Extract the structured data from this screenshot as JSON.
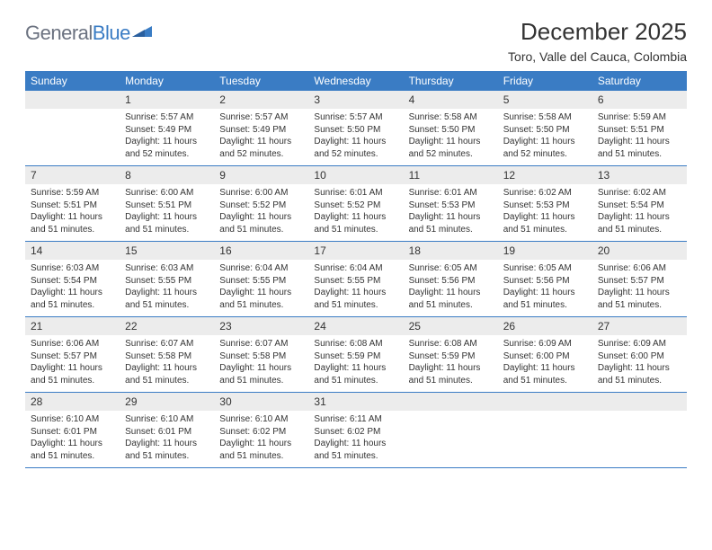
{
  "logo": {
    "text1": "General",
    "text2": "Blue"
  },
  "title": "December 2025",
  "location": "Toro, Valle del Cauca, Colombia",
  "colors": {
    "header_bg": "#3a7cc4",
    "daynum_bg": "#ececec",
    "row_border": "#3a7cc4",
    "text": "#333333",
    "logo_gray": "#6b7280"
  },
  "day_headers": [
    "Sunday",
    "Monday",
    "Tuesday",
    "Wednesday",
    "Thursday",
    "Friday",
    "Saturday"
  ],
  "weeks": [
    [
      {
        "n": "",
        "sr": "",
        "ss": "",
        "dl": ""
      },
      {
        "n": "1",
        "sr": "Sunrise: 5:57 AM",
        "ss": "Sunset: 5:49 PM",
        "dl": "Daylight: 11 hours and 52 minutes."
      },
      {
        "n": "2",
        "sr": "Sunrise: 5:57 AM",
        "ss": "Sunset: 5:49 PM",
        "dl": "Daylight: 11 hours and 52 minutes."
      },
      {
        "n": "3",
        "sr": "Sunrise: 5:57 AM",
        "ss": "Sunset: 5:50 PM",
        "dl": "Daylight: 11 hours and 52 minutes."
      },
      {
        "n": "4",
        "sr": "Sunrise: 5:58 AM",
        "ss": "Sunset: 5:50 PM",
        "dl": "Daylight: 11 hours and 52 minutes."
      },
      {
        "n": "5",
        "sr": "Sunrise: 5:58 AM",
        "ss": "Sunset: 5:50 PM",
        "dl": "Daylight: 11 hours and 52 minutes."
      },
      {
        "n": "6",
        "sr": "Sunrise: 5:59 AM",
        "ss": "Sunset: 5:51 PM",
        "dl": "Daylight: 11 hours and 51 minutes."
      }
    ],
    [
      {
        "n": "7",
        "sr": "Sunrise: 5:59 AM",
        "ss": "Sunset: 5:51 PM",
        "dl": "Daylight: 11 hours and 51 minutes."
      },
      {
        "n": "8",
        "sr": "Sunrise: 6:00 AM",
        "ss": "Sunset: 5:51 PM",
        "dl": "Daylight: 11 hours and 51 minutes."
      },
      {
        "n": "9",
        "sr": "Sunrise: 6:00 AM",
        "ss": "Sunset: 5:52 PM",
        "dl": "Daylight: 11 hours and 51 minutes."
      },
      {
        "n": "10",
        "sr": "Sunrise: 6:01 AM",
        "ss": "Sunset: 5:52 PM",
        "dl": "Daylight: 11 hours and 51 minutes."
      },
      {
        "n": "11",
        "sr": "Sunrise: 6:01 AM",
        "ss": "Sunset: 5:53 PM",
        "dl": "Daylight: 11 hours and 51 minutes."
      },
      {
        "n": "12",
        "sr": "Sunrise: 6:02 AM",
        "ss": "Sunset: 5:53 PM",
        "dl": "Daylight: 11 hours and 51 minutes."
      },
      {
        "n": "13",
        "sr": "Sunrise: 6:02 AM",
        "ss": "Sunset: 5:54 PM",
        "dl": "Daylight: 11 hours and 51 minutes."
      }
    ],
    [
      {
        "n": "14",
        "sr": "Sunrise: 6:03 AM",
        "ss": "Sunset: 5:54 PM",
        "dl": "Daylight: 11 hours and 51 minutes."
      },
      {
        "n": "15",
        "sr": "Sunrise: 6:03 AM",
        "ss": "Sunset: 5:55 PM",
        "dl": "Daylight: 11 hours and 51 minutes."
      },
      {
        "n": "16",
        "sr": "Sunrise: 6:04 AM",
        "ss": "Sunset: 5:55 PM",
        "dl": "Daylight: 11 hours and 51 minutes."
      },
      {
        "n": "17",
        "sr": "Sunrise: 6:04 AM",
        "ss": "Sunset: 5:55 PM",
        "dl": "Daylight: 11 hours and 51 minutes."
      },
      {
        "n": "18",
        "sr": "Sunrise: 6:05 AM",
        "ss": "Sunset: 5:56 PM",
        "dl": "Daylight: 11 hours and 51 minutes."
      },
      {
        "n": "19",
        "sr": "Sunrise: 6:05 AM",
        "ss": "Sunset: 5:56 PM",
        "dl": "Daylight: 11 hours and 51 minutes."
      },
      {
        "n": "20",
        "sr": "Sunrise: 6:06 AM",
        "ss": "Sunset: 5:57 PM",
        "dl": "Daylight: 11 hours and 51 minutes."
      }
    ],
    [
      {
        "n": "21",
        "sr": "Sunrise: 6:06 AM",
        "ss": "Sunset: 5:57 PM",
        "dl": "Daylight: 11 hours and 51 minutes."
      },
      {
        "n": "22",
        "sr": "Sunrise: 6:07 AM",
        "ss": "Sunset: 5:58 PM",
        "dl": "Daylight: 11 hours and 51 minutes."
      },
      {
        "n": "23",
        "sr": "Sunrise: 6:07 AM",
        "ss": "Sunset: 5:58 PM",
        "dl": "Daylight: 11 hours and 51 minutes."
      },
      {
        "n": "24",
        "sr": "Sunrise: 6:08 AM",
        "ss": "Sunset: 5:59 PM",
        "dl": "Daylight: 11 hours and 51 minutes."
      },
      {
        "n": "25",
        "sr": "Sunrise: 6:08 AM",
        "ss": "Sunset: 5:59 PM",
        "dl": "Daylight: 11 hours and 51 minutes."
      },
      {
        "n": "26",
        "sr": "Sunrise: 6:09 AM",
        "ss": "Sunset: 6:00 PM",
        "dl": "Daylight: 11 hours and 51 minutes."
      },
      {
        "n": "27",
        "sr": "Sunrise: 6:09 AM",
        "ss": "Sunset: 6:00 PM",
        "dl": "Daylight: 11 hours and 51 minutes."
      }
    ],
    [
      {
        "n": "28",
        "sr": "Sunrise: 6:10 AM",
        "ss": "Sunset: 6:01 PM",
        "dl": "Daylight: 11 hours and 51 minutes."
      },
      {
        "n": "29",
        "sr": "Sunrise: 6:10 AM",
        "ss": "Sunset: 6:01 PM",
        "dl": "Daylight: 11 hours and 51 minutes."
      },
      {
        "n": "30",
        "sr": "Sunrise: 6:10 AM",
        "ss": "Sunset: 6:02 PM",
        "dl": "Daylight: 11 hours and 51 minutes."
      },
      {
        "n": "31",
        "sr": "Sunrise: 6:11 AM",
        "ss": "Sunset: 6:02 PM",
        "dl": "Daylight: 11 hours and 51 minutes."
      },
      {
        "n": "",
        "sr": "",
        "ss": "",
        "dl": ""
      },
      {
        "n": "",
        "sr": "",
        "ss": "",
        "dl": ""
      },
      {
        "n": "",
        "sr": "",
        "ss": "",
        "dl": ""
      }
    ]
  ]
}
